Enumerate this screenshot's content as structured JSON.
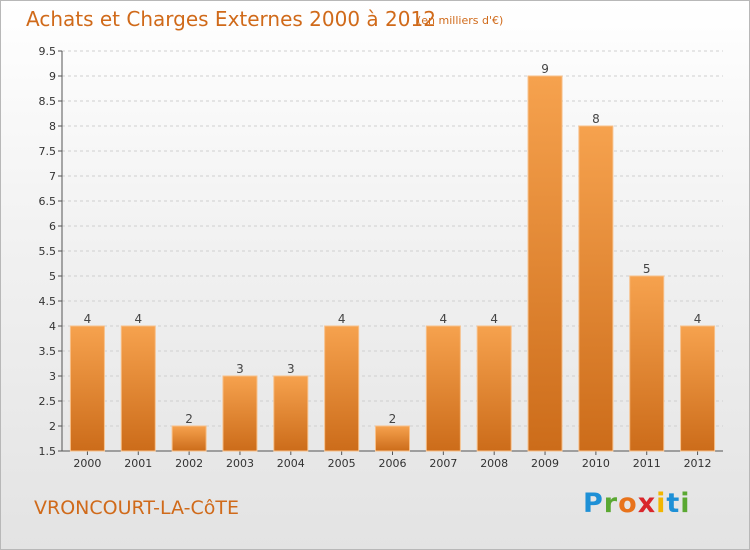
{
  "header": {
    "title": "Achats et Charges Externes 2000 à 2012",
    "subtitle": "(en milliers d'€)"
  },
  "footer": {
    "city": "VRONCOURT-LA-CôTE",
    "logo": [
      "P",
      "r",
      "o",
      "x",
      "i",
      "t",
      "i"
    ]
  },
  "colors": {
    "bar_top": "#f6a24e",
    "bar_bottom": "#cc6c1a",
    "accent": "#d06a1a"
  },
  "chart_data": {
    "type": "bar",
    "title": "Achats et Charges Externes 2000 à 2012",
    "subtitle": "(en milliers d'€)",
    "categories": [
      "2000",
      "2001",
      "2002",
      "2003",
      "2004",
      "2005",
      "2006",
      "2007",
      "2008",
      "2009",
      "2010",
      "2011",
      "2012"
    ],
    "values": [
      4,
      4,
      2,
      3,
      3,
      4,
      2,
      4,
      4,
      9,
      8,
      5,
      4
    ],
    "ylim": [
      1.5,
      9.5
    ],
    "yticks": [
      1.5,
      2,
      2.5,
      3,
      3.5,
      4,
      4.5,
      5,
      5.5,
      6,
      6.5,
      7,
      7.5,
      8,
      8.5,
      9,
      9.5
    ],
    "ytick_labels": [
      "1.5",
      "2",
      "2.5",
      "3",
      "3.5",
      "4",
      "4.5",
      "5",
      "5.5",
      "6",
      "6.5",
      "7",
      "7.5",
      "8",
      "8.5",
      "9",
      "9.5"
    ],
    "grid": true,
    "legend": "none"
  }
}
